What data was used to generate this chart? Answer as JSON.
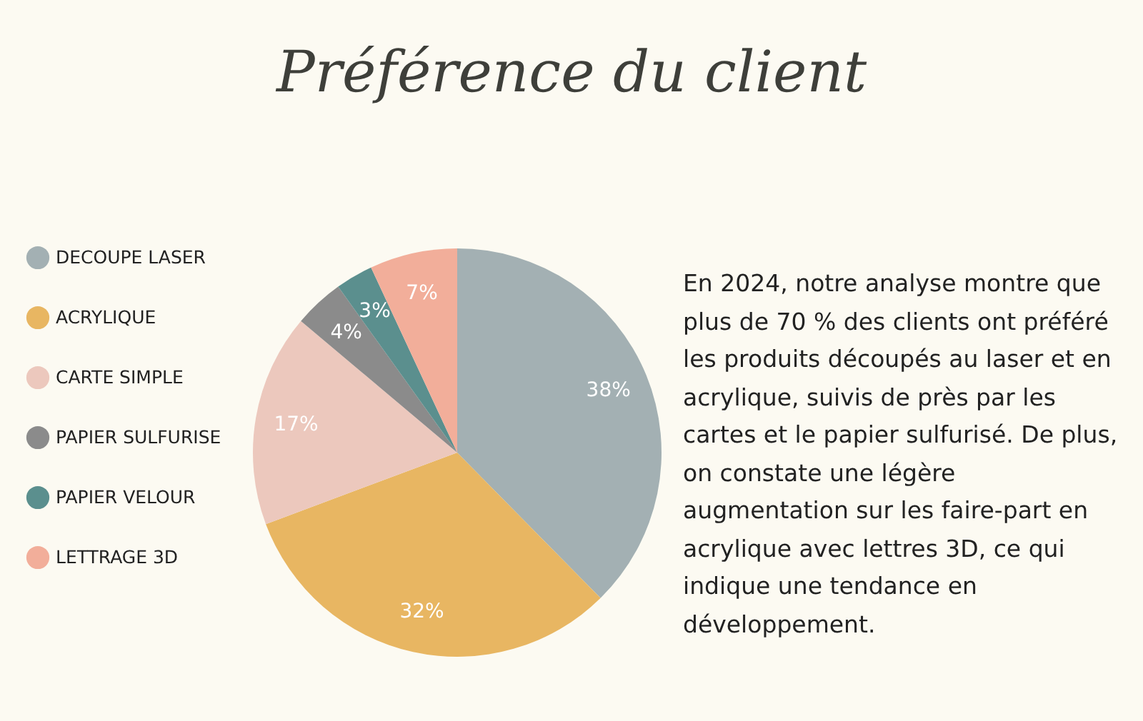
{
  "chart_data": {
    "type": "pie",
    "title": "Préférence du client",
    "categories": [
      "DECOUPE LASER",
      "ACRYLIQUE",
      "CARTE SIMPLE",
      "PAPIER SULFURISE",
      "PAPIER VELOUR",
      "LETTRAGE 3D"
    ],
    "values": [
      38,
      32,
      17,
      4,
      3,
      7
    ],
    "colors": [
      "#a3b0b3",
      "#e8b662",
      "#ecc8bd",
      "#8b8b8b",
      "#5b8f8e",
      "#f2ae9a"
    ],
    "value_labels": [
      "38%",
      "32%",
      "17%",
      "4%",
      "3%",
      "7%"
    ],
    "legend": "left",
    "annotations": [
      "En 2024, notre analyse montre que plus de 70 % des clients ont préféré les produits découpés au laser et en acrylique, suivis de près par les cartes et le papier sulfurisé. De plus, on constate une légère augmentation sur les faire-part en acrylique avec lettres 3D, ce qui indique une tendance en développement."
    ]
  }
}
